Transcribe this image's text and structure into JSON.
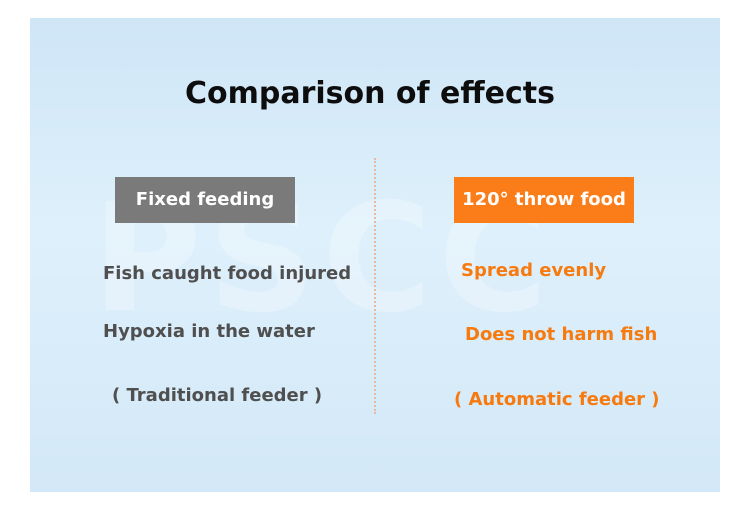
{
  "title": "Comparison of effects",
  "watermark": "PSCC",
  "colors": {
    "background_top": "#cfe6f7",
    "background_bottom": "#d3e8f8",
    "left_accent": "#7a7a7a",
    "left_text": "#4f4f4f",
    "right_accent": "#fb7d19",
    "right_text": "#f77a0f",
    "divider": "#e8b99a"
  },
  "left": {
    "heading": "Fixed feeding",
    "points": [
      "Fish caught food injured",
      "Hypoxia in the water"
    ],
    "caption": "( Traditional feeder )"
  },
  "right": {
    "heading": "120° throw food",
    "points": [
      "Spread evenly",
      "Does not harm fish"
    ],
    "caption": "( Automatic feeder )"
  }
}
